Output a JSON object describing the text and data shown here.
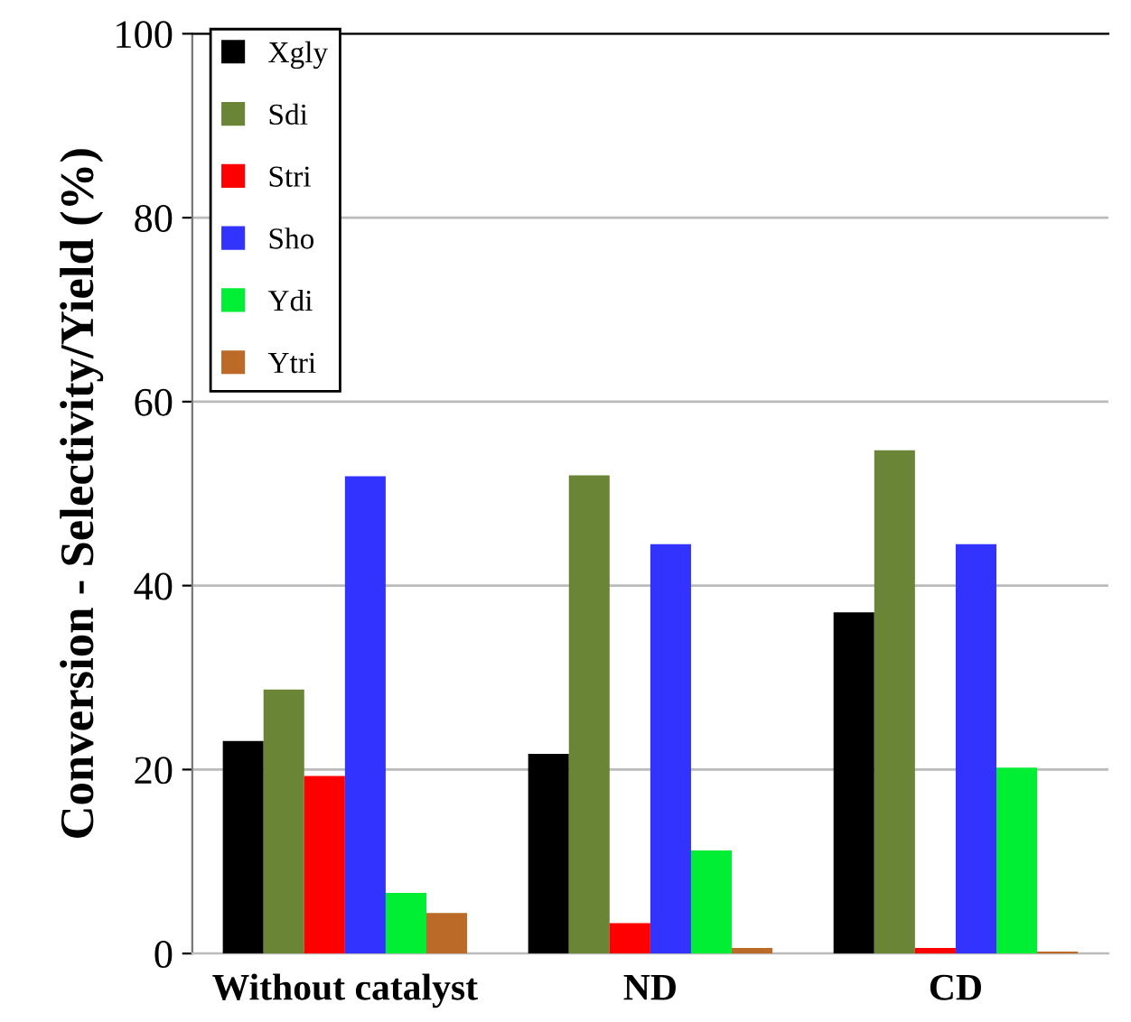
{
  "chart_data": {
    "type": "bar",
    "ylabel": "Conversion - Selectivity/Yield (%)",
    "categories": [
      "Without catalyst",
      "ND",
      "CD"
    ],
    "series": [
      {
        "name": "Xgly",
        "color": "#000000",
        "values": [
          23.1,
          21.7,
          37.1
        ]
      },
      {
        "name": "Sdi",
        "color": "#6b8537",
        "values": [
          28.7,
          52.0,
          54.7
        ]
      },
      {
        "name": "Stri",
        "color": "#ff0000",
        "values": [
          19.3,
          3.3,
          0.6
        ]
      },
      {
        "name": "Sho",
        "color": "#3333ff",
        "values": [
          51.9,
          44.5,
          44.5
        ]
      },
      {
        "name": "Ydi",
        "color": "#00ee33",
        "values": [
          6.6,
          11.2,
          20.2
        ]
      },
      {
        "name": "Ytri",
        "color": "#bb6a28",
        "values": [
          4.4,
          0.6,
          0.2
        ]
      }
    ],
    "ylim": [
      0,
      100
    ],
    "yticks": [
      0,
      20,
      40,
      60,
      80,
      100
    ],
    "grid": "y",
    "legend": "top left"
  }
}
